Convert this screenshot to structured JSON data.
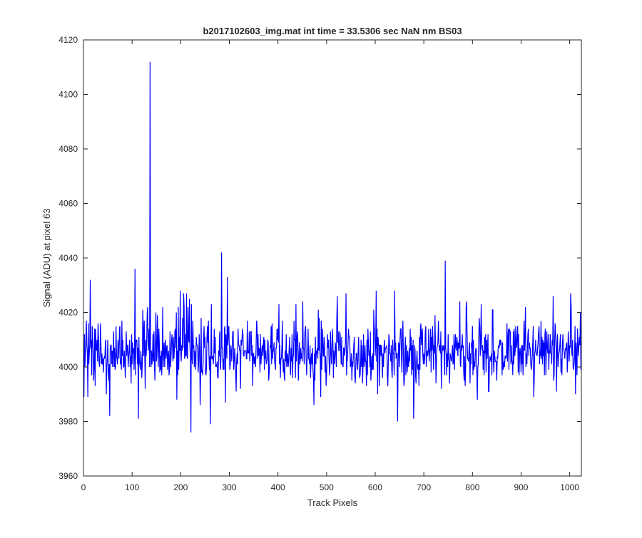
{
  "chart_data": {
    "type": "line",
    "title": "b2017102603_img.mat int time = 33.5306 sec  NaN nm BS03",
    "xlabel": "Track Pixels",
    "ylabel": "Signal (ADU) at pixel 63",
    "xlim": [
      0,
      1024
    ],
    "ylim": [
      3960,
      4120
    ],
    "xticks": [
      0,
      100,
      200,
      300,
      400,
      500,
      600,
      700,
      800,
      900,
      1000
    ],
    "yticks": [
      3960,
      3980,
      4000,
      4020,
      4040,
      4060,
      4080,
      4100,
      4120
    ],
    "grid": false,
    "box": true,
    "line_color": "#0000ff",
    "axis_color": "#262626",
    "series": [
      {
        "x_start": 1,
        "x_step": 1,
        "n_points": 1024,
        "baseline": 4005,
        "noise_range": [
          3976,
          4042
        ],
        "features": [
          {
            "x": 137,
            "y": 4112
          },
          {
            "x": 221,
            "y": 3976
          },
          {
            "x": 261,
            "y": 3979
          },
          {
            "x": 284,
            "y": 4042
          },
          {
            "x": 646,
            "y": 3980
          },
          {
            "x": 744,
            "y": 4039
          },
          {
            "x": 54,
            "y": 3982
          },
          {
            "x": 113,
            "y": 3981
          }
        ]
      }
    ]
  }
}
